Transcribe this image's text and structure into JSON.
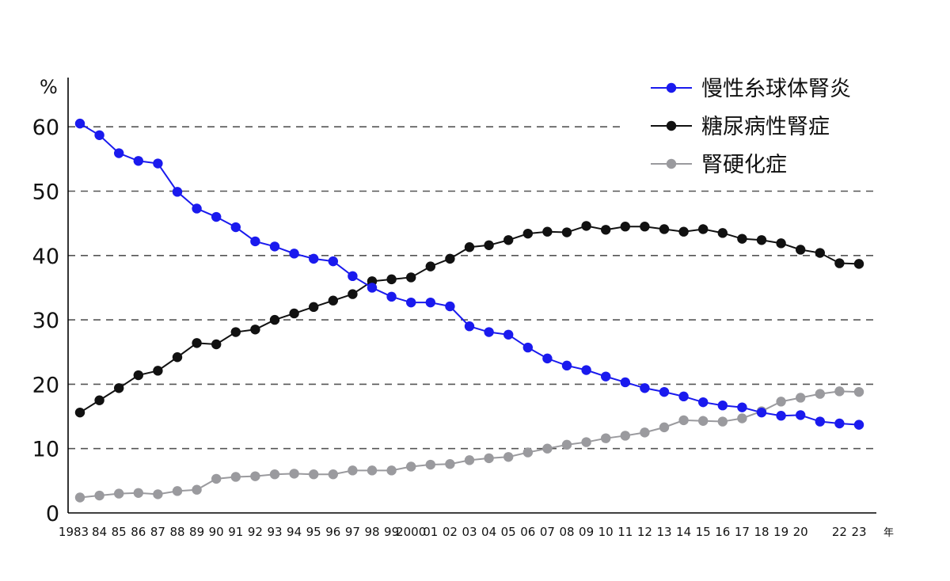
{
  "chart_data": {
    "type": "line",
    "y_unit": "%",
    "x_unit": "年",
    "ylim": [
      0,
      65
    ],
    "y_ticks": [
      0,
      10,
      20,
      30,
      40,
      50,
      60
    ],
    "y_tick_labels": [
      "0",
      "10",
      "20",
      "30",
      "40",
      "50",
      "60"
    ],
    "grid": "horizontal-dashed",
    "legend_position": "top-right",
    "x": [
      1983,
      1984,
      1985,
      1986,
      1987,
      1988,
      1989,
      1990,
      1991,
      1992,
      1993,
      1994,
      1995,
      1996,
      1997,
      1998,
      1999,
      2000,
      2001,
      2002,
      2003,
      2004,
      2005,
      2006,
      2007,
      2008,
      2009,
      2010,
      2011,
      2012,
      2013,
      2014,
      2015,
      2016,
      2017,
      2018,
      2019,
      2020,
      2021,
      2022,
      2023
    ],
    "x_tick_labels": [
      "1983",
      "84",
      "85",
      "86",
      "87",
      "88",
      "89",
      "90",
      "91",
      "92",
      "93",
      "94",
      "95",
      "96",
      "97",
      "98",
      "99",
      "2000",
      "01",
      "02",
      "03",
      "04",
      "05",
      "06",
      "07",
      "08",
      "09",
      "10",
      "11",
      "12",
      "13",
      "14",
      "15",
      "16",
      "17",
      "18",
      "19",
      "20",
      "",
      "22",
      "23"
    ],
    "series": [
      {
        "name": "慢性糸球体腎炎",
        "color": "#1a1aee",
        "values": [
          60.5,
          58.7,
          55.9,
          54.7,
          54.3,
          49.9,
          47.3,
          46.0,
          44.4,
          42.2,
          41.4,
          40.3,
          39.5,
          39.1,
          36.8,
          35.0,
          33.6,
          32.7,
          32.7,
          32.1,
          29.0,
          28.1,
          27.7,
          25.7,
          24.0,
          22.9,
          22.2,
          21.2,
          20.3,
          19.4,
          18.8,
          18.1,
          17.2,
          16.7,
          16.4,
          15.6,
          15.1,
          15.2,
          14.2,
          13.9,
          13.7
        ]
      },
      {
        "name": "糖尿病性腎症",
        "color": "#111111",
        "values": [
          15.6,
          17.5,
          19.4,
          21.4,
          22.1,
          24.2,
          26.4,
          26.2,
          28.1,
          28.5,
          30.0,
          31.0,
          32.0,
          33.0,
          34.0,
          36.0,
          36.3,
          36.6,
          38.3,
          39.5,
          41.3,
          41.6,
          42.4,
          43.4,
          43.7,
          43.6,
          44.6,
          44.0,
          44.5,
          44.5,
          44.1,
          43.7,
          44.1,
          43.5,
          42.6,
          42.4,
          41.9,
          40.9,
          40.4,
          38.8,
          38.7
        ]
      },
      {
        "name": "腎硬化症",
        "color": "#9a9a9e",
        "values": [
          2.4,
          2.7,
          3.0,
          3.1,
          2.9,
          3.4,
          3.6,
          5.3,
          5.6,
          5.7,
          6.0,
          6.1,
          6.0,
          6.0,
          6.6,
          6.6,
          6.6,
          7.2,
          7.5,
          7.6,
          8.2,
          8.5,
          8.7,
          9.4,
          10.0,
          10.6,
          11.0,
          11.6,
          12.0,
          12.5,
          13.3,
          14.4,
          14.3,
          14.2,
          14.7,
          15.8,
          17.3,
          17.9,
          18.5,
          18.9,
          18.8
        ]
      }
    ]
  }
}
